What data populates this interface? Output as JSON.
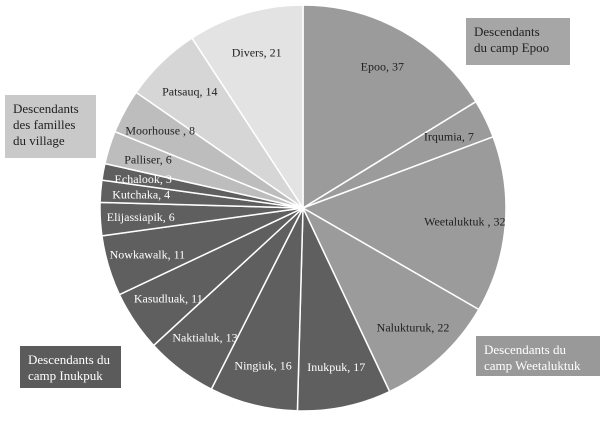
{
  "chart_data": {
    "type": "pie",
    "title": "",
    "start_angle_deg": 0,
    "direction": "clockwise",
    "slices": [
      {
        "label": "Epoo, 37",
        "name": "Epoo",
        "value": 37,
        "color": "#9b9b9b",
        "text_color": "#222222"
      },
      {
        "label": "Irqumia, 7",
        "name": "Irqumia",
        "value": 7,
        "color": "#9b9b9b",
        "text_color": "#222222"
      },
      {
        "label": "Weetaluktuk , 32",
        "name": "Weetaluktuk",
        "value": 32,
        "color": "#9b9b9b",
        "text_color": "#222222"
      },
      {
        "label": "Nalukturuk, 22",
        "name": "Nalukturuk",
        "value": 22,
        "color": "#9b9b9b",
        "text_color": "#222222"
      },
      {
        "label": "Inukpuk, 17",
        "name": "Inukpuk",
        "value": 17,
        "color": "#5f5f5f",
        "text_color": "#ffffff"
      },
      {
        "label": "Ningiuk, 16",
        "name": "Ningiuk",
        "value": 16,
        "color": "#5f5f5f",
        "text_color": "#ffffff"
      },
      {
        "label": "Naktialuk, 13",
        "name": "Naktialuk",
        "value": 13,
        "color": "#5f5f5f",
        "text_color": "#ffffff"
      },
      {
        "label": "Kasudluak, 11",
        "name": "Kasudluak",
        "value": 11,
        "color": "#5f5f5f",
        "text_color": "#ffffff"
      },
      {
        "label": "Nowkawalk, 11",
        "name": "Nowkawalk",
        "value": 11,
        "color": "#5f5f5f",
        "text_color": "#ffffff"
      },
      {
        "label": "Elijassiapik, 6",
        "name": "Elijassiapik",
        "value": 6,
        "color": "#5f5f5f",
        "text_color": "#ffffff"
      },
      {
        "label": "Kutchaka, 4",
        "name": "Kutchaka",
        "value": 4,
        "color": "#5f5f5f",
        "text_color": "#ffffff"
      },
      {
        "label": "Echalook, 3",
        "name": "Echalook",
        "value": 3,
        "color": "#5f5f5f",
        "text_color": "#ffffff"
      },
      {
        "label": "Palliser, 6",
        "name": "Palliser",
        "value": 6,
        "color": "#bdbdbd",
        "text_color": "#222222"
      },
      {
        "label": "Moorhouse , 8",
        "name": "Moorhouse",
        "value": 8,
        "color": "#bdbdbd",
        "text_color": "#222222"
      },
      {
        "label": "Patsauq, 14",
        "name": "Patsauq",
        "value": 14,
        "color": "#d6d6d6",
        "text_color": "#222222"
      },
      {
        "label": "Divers, 21",
        "name": "Divers",
        "value": 21,
        "color": "#e3e3e3",
        "text_color": "#222222"
      }
    ],
    "group_labels": {
      "epoo": [
        "Descendants",
        "du camp Epoo"
      ],
      "village": [
        "Descendants",
        "des familles",
        "du village"
      ],
      "weetaluktuk": [
        "Descendants du",
        "camp Weetaluktuk"
      ],
      "inukpuk": [
        "Descendants du",
        "camp Inukpuk"
      ]
    }
  }
}
